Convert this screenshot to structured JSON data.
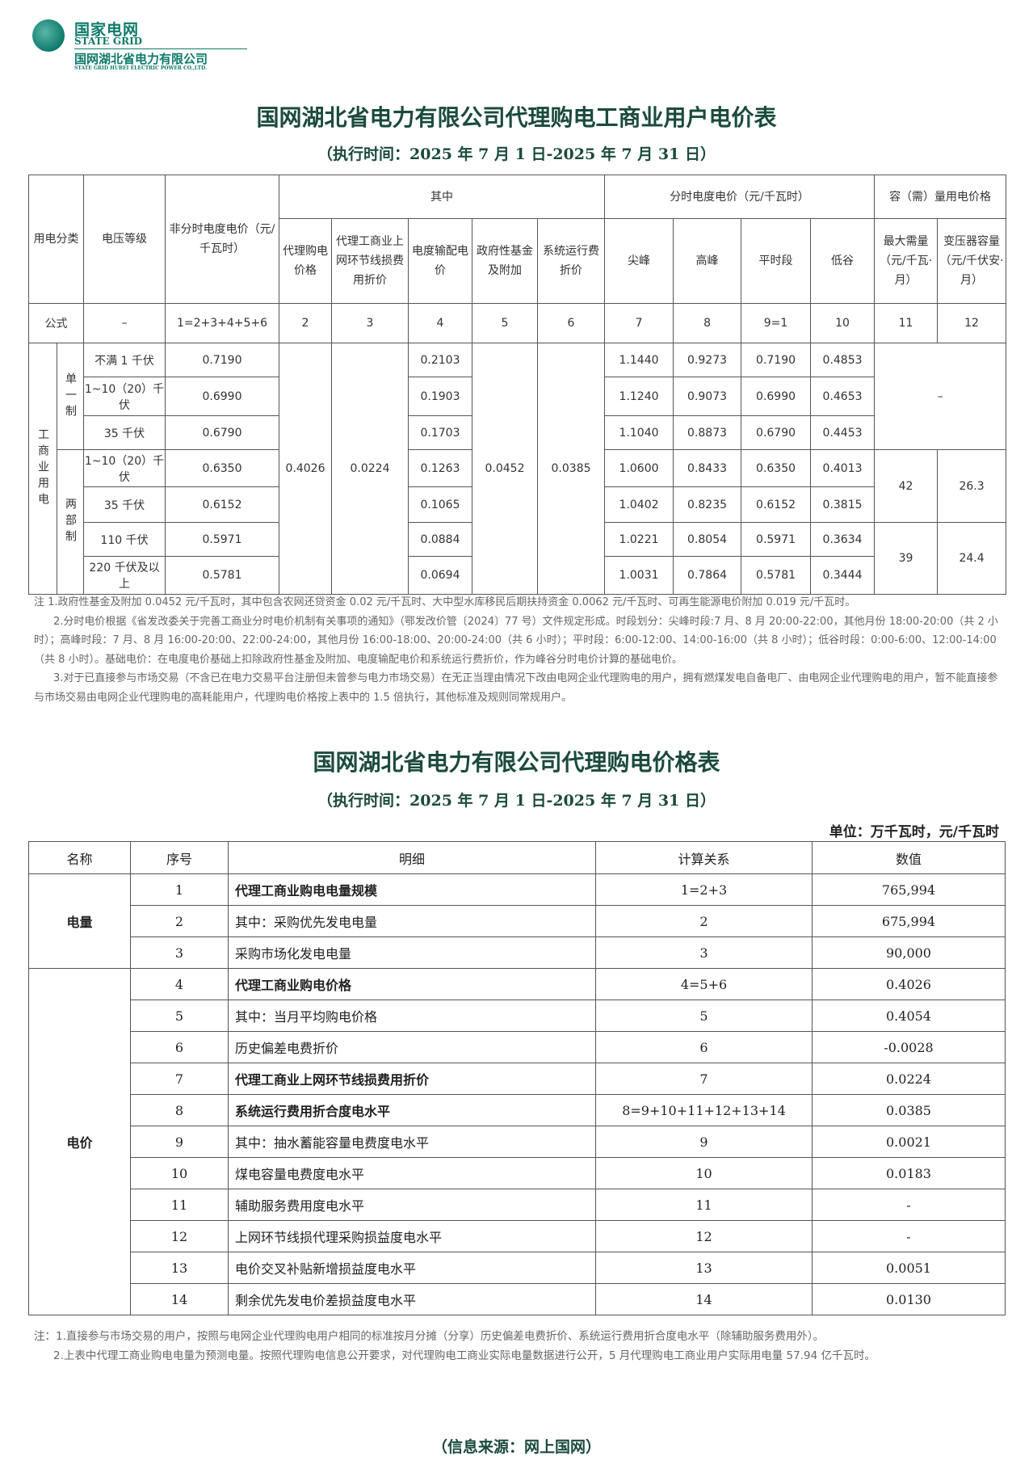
{
  "logo": {
    "cn": "国家电网",
    "en": "STATE GRID",
    "company_cn": "国网湖北省电力有限公司",
    "company_en": "STATE GRID HUBEI ELECTRIC POWER CO.,LTD."
  },
  "table1": {
    "title": "国网湖北省电力有限公司代理购电工商业用户电价表",
    "period": "（执行时间：2025 年 7 月 1 日-2025 年 7 月 31 日）",
    "headers": {
      "category": "用电分类",
      "voltage": "电压等级",
      "non_tou": "非分时电度电价（元/千瓦时）",
      "among": "其中",
      "tou": "分时电度电价（元/千瓦时）",
      "capacity": "容（需）量用电价格",
      "sub": [
        "代理购电价格",
        "代理工商业上网环节线损费用折价",
        "电度输配电价",
        "政府性基金及附加",
        "系统运行费折价",
        "尖峰",
        "高峰",
        "平时段",
        "低谷",
        "最大需量（元/千瓦·月）",
        "变压器容量（元/千伏安·月）"
      ]
    },
    "formula": {
      "label": "公式",
      "voltage": "–",
      "cells": [
        "1=2+3+4+5+6",
        "2",
        "3",
        "4",
        "5",
        "6",
        "7",
        "8",
        "9=1",
        "10",
        "11",
        "12"
      ]
    },
    "category": "工商业用电",
    "single": "单一制",
    "two_part": "两部制",
    "shared": {
      "proxy": "0.4026",
      "loss": "0.0224",
      "fund": "0.0452",
      "sysop": "0.0385",
      "single_capacity": "–"
    },
    "rows": [
      {
        "voltage": "不满 1 千伏",
        "non_tou": "0.7190",
        "dist": "0.2103",
        "tou": [
          "1.1440",
          "0.9273",
          "0.7190",
          "0.4853"
        ]
      },
      {
        "voltage": "1~10（20）千伏",
        "non_tou": "0.6990",
        "dist": "0.1903",
        "tou": [
          "1.1240",
          "0.9073",
          "0.6990",
          "0.4653"
        ]
      },
      {
        "voltage": "35 千伏",
        "non_tou": "0.6790",
        "dist": "0.1703",
        "tou": [
          "1.1040",
          "0.8873",
          "0.6790",
          "0.4453"
        ]
      },
      {
        "voltage": "1~10（20）千伏",
        "non_tou": "0.6350",
        "dist": "0.1263",
        "tou": [
          "1.0600",
          "0.8433",
          "0.6350",
          "0.4013"
        ]
      },
      {
        "voltage": "35 千伏",
        "non_tou": "0.6152",
        "dist": "0.1065",
        "tou": [
          "1.0402",
          "0.8235",
          "0.6152",
          "0.3815"
        ]
      },
      {
        "voltage": "110 千伏",
        "non_tou": "0.5971",
        "dist": "0.0884",
        "tou": [
          "1.0221",
          "0.8054",
          "0.5971",
          "0.3634"
        ]
      },
      {
        "voltage": "220 千伏及以上",
        "non_tou": "0.5781",
        "dist": "0.0694",
        "tou": [
          "1.0031",
          "0.7864",
          "0.5781",
          "0.3444"
        ]
      }
    ],
    "capacity_groups": [
      [
        "42",
        "26.3"
      ],
      [
        "39",
        "24.4"
      ]
    ],
    "notes": [
      "注 1.政府性基金及附加 0.0452 元/千瓦时，其中包含农网还贷资金 0.02 元/千瓦时、大中型水库移民后期扶持资金 0.0062 元/千瓦时、可再生能源电价附加 0.019 元/千瓦时。",
      "2.分时电价根据《省发改委关于完善工商业分时电价机制有关事项的通知》（鄂发改价管〔2024〕77 号）文件规定形成。时段划分：尖峰时段:7 月、8 月 20:00-22:00，其他月份 18:00-20:00（共 2 小时）；高峰时段：7 月、8 月 16:00-20:00、22:00-24:00，其他月份 16:00-18:00、20:00-24:00（共 6 小时）；平时段：6:00-12:00、14:00-16:00（共 8 小时）；低谷时段：0:00-6:00、12:00-14:00（共 8 小时）。基础电价：在电度电价基础上扣除政府性基金及附加、电度输配电价和系统运行费折价，作为峰谷分时电价计算的基础电价。",
      "3.对于已直接参与市场交易（不含已在电力交易平台注册但未曾参与电力市场交易）在无正当理由情况下改由电网企业代理购电的用户，拥有燃煤发电自备电厂、由电网企业代理购电的用户，暂不能直接参与市场交易由电网企业代理购电的高耗能用户，代理购电价格按上表中的 1.5 倍执行，其他标准及规则同常规用户。"
    ]
  },
  "table2": {
    "title": "国网湖北省电力有限公司代理购电价格表",
    "period": "（执行时间：2025 年 7 月 1 日-2025 年 7 月 31 日）",
    "unit": "单位：万千瓦时，元/千瓦时",
    "headers": [
      "名称",
      "序号",
      "明细",
      "计算关系",
      "数值"
    ],
    "groups": [
      "电量",
      "电价"
    ],
    "rows": [
      {
        "no": "1",
        "detail": "代理工商业购电电量规模",
        "calc": "1=2+3",
        "value": "765,994",
        "bold": true
      },
      {
        "no": "2",
        "detail": "其中：采购优先发电电量",
        "calc": "2",
        "value": "675,994"
      },
      {
        "no": "3",
        "detail": "采购市场化发电电量",
        "calc": "3",
        "value": "90,000"
      },
      {
        "no": "4",
        "detail": "代理工商业购电价格",
        "calc": "4=5+6",
        "value": "0.4026",
        "bold": true
      },
      {
        "no": "5",
        "detail": "其中：当月平均购电价格",
        "calc": "5",
        "value": "0.4054"
      },
      {
        "no": "6",
        "detail": "历史偏差电费折价",
        "calc": "6",
        "value": "-0.0028"
      },
      {
        "no": "7",
        "detail": "代理工商业上网环节线损费用折价",
        "calc": "7",
        "value": "0.0224",
        "bold": true
      },
      {
        "no": "8",
        "detail": "系统运行费用折合度电水平",
        "calc": "8=9+10+11+12+13+14",
        "value": "0.0385",
        "bold": true
      },
      {
        "no": "9",
        "detail": "其中：抽水蓄能容量电费度电水平",
        "calc": "9",
        "value": "0.0021"
      },
      {
        "no": "10",
        "detail": "煤电容量电费度电水平",
        "calc": "10",
        "value": "0.0183"
      },
      {
        "no": "11",
        "detail": "辅助服务费用度电水平",
        "calc": "11",
        "value": "-"
      },
      {
        "no": "12",
        "detail": "上网环节线损代理采购损益度电水平",
        "calc": "12",
        "value": "-"
      },
      {
        "no": "13",
        "detail": "电价交叉补贴新增损益度电水平",
        "calc": "13",
        "value": "0.0051"
      },
      {
        "no": "14",
        "detail": "剩余优先发电价差损益度电水平",
        "calc": "14",
        "value": "0.0130"
      }
    ],
    "notes": [
      "注：1.直接参与市场交易的用户，按照与电网企业代理购电用户相同的标准按月分摊（分享）历史偏差电费折价、系统运行费用折合度电水平（除辅助服务费用外）。",
      "2.上表中代理工商业购电电量为预测电量。按照代理购电信息公开要求，对代理购电工商业实际电量数据进行公开，5 月代理购电工商业用户实际用电量 57.94 亿千瓦时。"
    ]
  },
  "source": "（信息来源：网上国网）"
}
